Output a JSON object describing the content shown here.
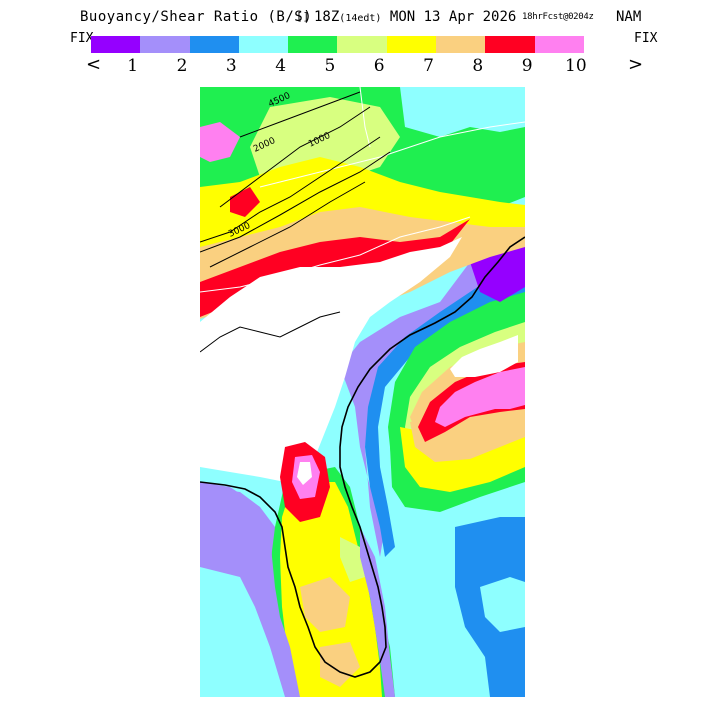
{
  "header": {
    "title": "Buoyancy/Shear Ratio (B/S)",
    "valid": "18Z",
    "valid_local": "(14edt)",
    "date": "MON 13 Apr 2026",
    "forecast": "18hrFcst@0204z",
    "model": "NAM",
    "icon_glyph": "[]"
  },
  "controls": {
    "fix_left": "FIX",
    "fix_right": "FIX",
    "prev_arrow": "<",
    "next_arrow": ">"
  },
  "legend": {
    "colors": [
      "#9500ff",
      "#a48ffa",
      "#1f8ff0",
      "#8effff",
      "#1fef50",
      "#d8ff80",
      "#ffff00",
      "#fad080",
      "#ff0022",
      "#ff80f0"
    ],
    "ticks": [
      "1",
      "2",
      "3",
      "4",
      "5",
      "6",
      "7",
      "8",
      "9",
      "10"
    ]
  },
  "map": {
    "contour_labels": [
      "4500",
      "2000",
      "1000",
      "3000"
    ],
    "background_color": "#8effff",
    "coastline_color": "#000000"
  }
}
